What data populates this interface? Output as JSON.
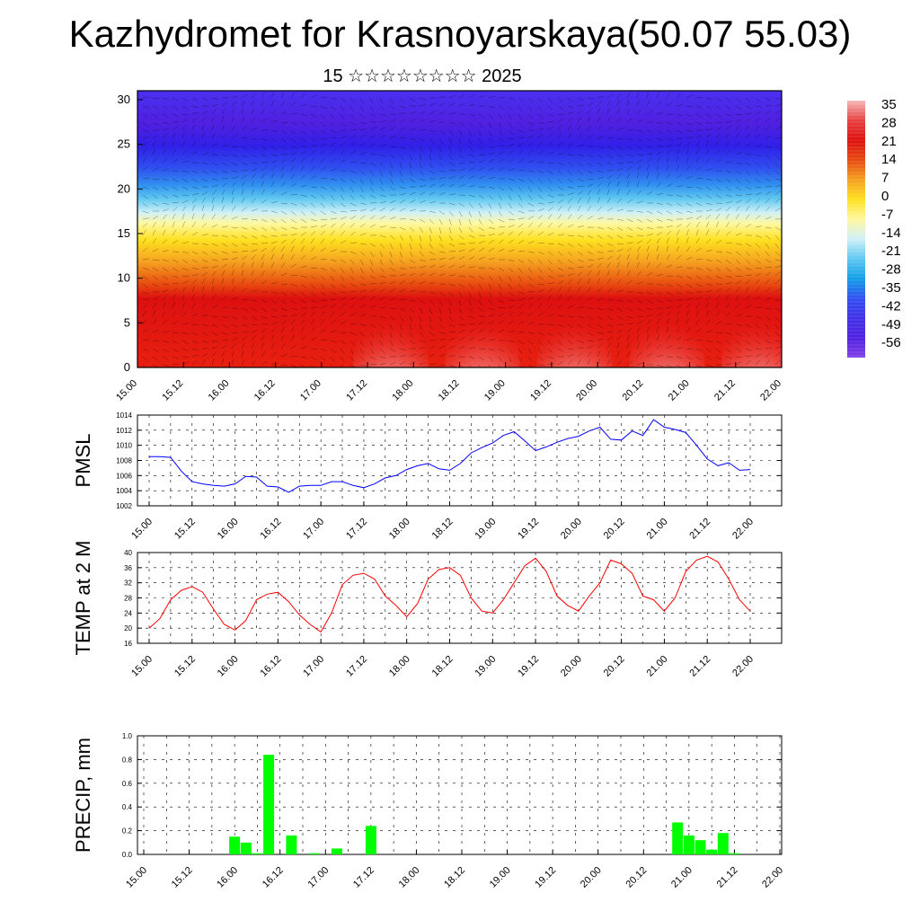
{
  "header": {
    "title": "Kazhydromet for Krasnoyarskaya(50.07 55.03)",
    "subtitle": "15 ☆☆☆☆☆☆☆☆ 2025"
  },
  "chart_data": [
    {
      "type": "heatmap",
      "title": "",
      "x_ticks": [
        "15.00",
        "15.12",
        "16.00",
        "16.12",
        "17.00",
        "17.12",
        "18.00",
        "18.12",
        "19.00",
        "19.12",
        "20.00",
        "20.12",
        "21.00",
        "21.12",
        "22.00"
      ],
      "y_ticks": [
        0,
        5,
        10,
        15,
        20,
        25,
        30
      ],
      "ylim": [
        0,
        31
      ],
      "colorbar_labels": [
        "35",
        "28",
        "21",
        "14",
        "7",
        "0",
        "-7",
        "-14",
        "-21",
        "-28",
        "-35",
        "-42",
        "-49",
        "-56"
      ],
      "colorbar_colors": [
        "#f4b8b8",
        "#e94040",
        "#dd1010",
        "#e84a10",
        "#f5a020",
        "#ffe020",
        "#fff8a0",
        "#d0f0f8",
        "#60c8f0",
        "#10a0e8",
        "#3050f0",
        "#4030e8",
        "#5020e0",
        "#8040e8"
      ],
      "description_levels": [
        {
          "level_range": [
            0,
            10
          ],
          "temperature_range": [
            21,
            35
          ]
        },
        {
          "level_range": [
            10,
            17
          ],
          "temperature_range": [
            -14,
            14
          ]
        },
        {
          "level_range": [
            17,
            22
          ],
          "temperature_range": [
            -42,
            -21
          ]
        },
        {
          "level_range": [
            22,
            31
          ],
          "temperature_range": [
            -56,
            -49
          ]
        }
      ]
    },
    {
      "type": "line",
      "ylabel": "PMSL",
      "ylim": [
        1002,
        1014
      ],
      "y_ticks": [
        1002,
        1004,
        1006,
        1008,
        1010,
        1012,
        1014
      ],
      "x_ticks": [
        "15.00",
        "15.12",
        "16.00",
        "16.12",
        "17.00",
        "17.12",
        "18.00",
        "18.12",
        "19.00",
        "19.12",
        "20.00",
        "20.12",
        "21.00",
        "21.12",
        "22.00"
      ],
      "series": [
        {
          "color": "#0000ff",
          "x": [
            0,
            3,
            6,
            9,
            12,
            15,
            18,
            21,
            24,
            27,
            30,
            33,
            36,
            39,
            42,
            45,
            48,
            51,
            54,
            57,
            60,
            63,
            66,
            69,
            72,
            75,
            78,
            81,
            84,
            87,
            90,
            93,
            96,
            99,
            102,
            105,
            108,
            111,
            114,
            117,
            120,
            123,
            126,
            129,
            132,
            135,
            138,
            141,
            144,
            147,
            150,
            153,
            156,
            159,
            162,
            165,
            168
          ],
          "values": [
            1008.5,
            1008.5,
            1008.4,
            1006.6,
            1005.2,
            1004.9,
            1004.7,
            1004.6,
            1004.9,
            1005.9,
            1005.8,
            1004.6,
            1004.5,
            1003.8,
            1004.6,
            1004.7,
            1004.7,
            1005.2,
            1005.2,
            1004.7,
            1004.4,
            1004.9,
            1005.7,
            1006.0,
            1006.8,
            1007.3,
            1007.6,
            1006.9,
            1006.7,
            1007.6,
            1009.0,
            1009.7,
            1010.3,
            1011.3,
            1011.8,
            1010.6,
            1009.3,
            1009.8,
            1010.4,
            1010.9,
            1011.2,
            1011.9,
            1012.4,
            1010.8,
            1010.7,
            1011.9,
            1011.3,
            1013.4,
            1012.4,
            1012.1,
            1011.7,
            1010.0,
            1008.2,
            1007.3,
            1007.7,
            1006.7,
            1006.8
          ]
        }
      ]
    },
    {
      "type": "line",
      "ylabel": "TEMP at 2 M",
      "ylim": [
        16,
        40
      ],
      "y_ticks": [
        16,
        20,
        24,
        28,
        32,
        36,
        40
      ],
      "x_ticks": [
        "15.00",
        "15.12",
        "16.00",
        "16.12",
        "17.00",
        "17.12",
        "18.00",
        "18.12",
        "19.00",
        "19.12",
        "20.00",
        "20.12",
        "21.00",
        "21.12",
        "22.00"
      ],
      "series": [
        {
          "color": "#ff0000",
          "x": [
            0,
            3,
            6,
            9,
            12,
            15,
            18,
            21,
            24,
            27,
            30,
            33,
            36,
            39,
            42,
            45,
            48,
            51,
            54,
            57,
            60,
            63,
            66,
            69,
            72,
            75,
            78,
            81,
            84,
            87,
            90,
            93,
            96,
            99,
            102,
            105,
            108,
            111,
            114,
            117,
            120,
            123,
            126,
            129,
            132,
            135,
            138,
            141,
            144,
            147,
            150,
            153,
            156,
            159,
            162,
            165,
            168
          ],
          "values": [
            20.0,
            22.5,
            27.5,
            30.0,
            31.0,
            29.5,
            25.0,
            21.0,
            19.5,
            22.0,
            27.5,
            29.0,
            29.5,
            27.0,
            23.5,
            21.0,
            19.0,
            24.0,
            31.5,
            34.0,
            34.5,
            33.0,
            28.5,
            26.0,
            23.0,
            26.5,
            33.0,
            35.5,
            36.0,
            34.0,
            28.0,
            24.5,
            24.0,
            27.5,
            32.0,
            36.5,
            38.5,
            35.0,
            28.5,
            26.0,
            24.5,
            28.5,
            32.0,
            38.0,
            37.0,
            34.5,
            28.5,
            27.5,
            24.5,
            28.0,
            35.0,
            38.0,
            39.0,
            37.5,
            33.0,
            27.5,
            24.5
          ]
        }
      ]
    },
    {
      "type": "bar",
      "ylabel": "PRECIP, mm",
      "ylim": [
        0,
        1.0
      ],
      "y_ticks": [
        "0.0",
        "0.2",
        "0.4",
        "0.6",
        "0.8",
        "1.0"
      ],
      "x_ticks": [
        "15.00",
        "15.12",
        "16.00",
        "16.12",
        "17.00",
        "17.12",
        "18.00",
        "18.12",
        "19.00",
        "19.12",
        "20.00",
        "20.12",
        "21.00",
        "21.12",
        "22.00"
      ],
      "series": [
        {
          "color": "#00ff00",
          "x": [
            24,
            27,
            30,
            33,
            39,
            45,
            51,
            60,
            141,
            144,
            147,
            150,
            153,
            156
          ],
          "values": [
            0.15,
            0.1,
            0.01,
            0.84,
            0.16,
            0.01,
            0.05,
            0.24,
            0.27,
            0.16,
            0.12,
            0.04,
            0.18,
            0.01
          ]
        }
      ]
    }
  ]
}
